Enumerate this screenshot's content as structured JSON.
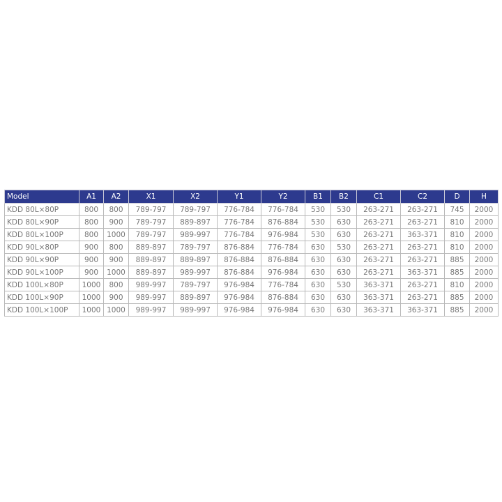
{
  "table": {
    "header": [
      "Model",
      "A1",
      "A2",
      "X1",
      "X2",
      "Y1",
      "Y2",
      "B1",
      "B2",
      "C1",
      "C2",
      "D",
      "H"
    ],
    "rows": [
      [
        "KDD 80L×80P",
        800,
        800,
        "789-797",
        "789-797",
        "776-784",
        "776-784",
        530,
        530,
        "263-271",
        "263-271",
        745,
        2000
      ],
      [
        "KDD 80L×90P",
        800,
        900,
        "789-797",
        "889-897",
        "776-784",
        "876-884",
        530,
        630,
        "263-271",
        "263-271",
        810,
        2000
      ],
      [
        "KDD 80L×100P",
        800,
        1000,
        "789-797",
        "989-997",
        "776-784",
        "976-984",
        530,
        630,
        "263-271",
        "363-371",
        810,
        2000
      ],
      [
        "KDD 90L×80P",
        900,
        800,
        "889-897",
        "789-797",
        "876-884",
        "776-784",
        630,
        530,
        "263-271",
        "263-271",
        810,
        2000
      ],
      [
        "KDD 90L×90P",
        900,
        900,
        "889-897",
        "889-897",
        "876-884",
        "876-884",
        630,
        630,
        "263-271",
        "263-271",
        885,
        2000
      ],
      [
        "KDD 90L×100P",
        900,
        1000,
        "889-897",
        "989-997",
        "876-884",
        "976-984",
        630,
        630,
        "263-271",
        "363-371",
        885,
        2000
      ],
      [
        "KDD 100L×80P",
        1000,
        800,
        "989-997",
        "789-797",
        "976-984",
        "776-784",
        630,
        530,
        "363-371",
        "263-271",
        810,
        2000
      ],
      [
        "KDD 100L×90P",
        1000,
        900,
        "989-997",
        "889-897",
        "976-984",
        "876-884",
        630,
        630,
        "363-371",
        "263-271",
        885,
        2000
      ],
      [
        "KDD 100L×100P",
        1000,
        1000,
        "989-997",
        "989-997",
        "976-984",
        "976-984",
        630,
        630,
        "363-371",
        "363-371",
        885,
        2000
      ]
    ]
  }
}
